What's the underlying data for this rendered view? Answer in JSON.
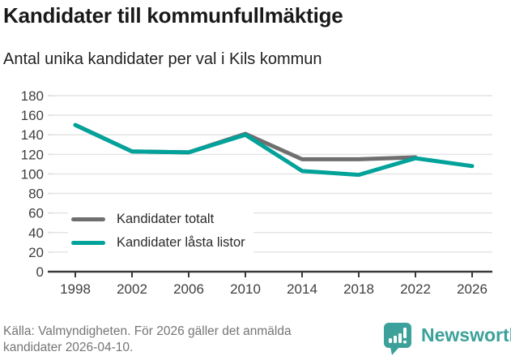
{
  "header": {
    "title": "Kandidater till kommunfullmäktige",
    "subtitle": "Antal unika kandidater per val i Kils kommun"
  },
  "chart_data": {
    "type": "line",
    "title": "Kandidater till kommunfullmäktige",
    "subtitle": "Antal unika kandidater per val i Kils kommun",
    "x": [
      1998,
      2002,
      2006,
      2010,
      2014,
      2018,
      2022,
      2026
    ],
    "series": [
      {
        "name": "Kandidater totalt",
        "color": "#6f6f6f",
        "values": [
          150,
          123,
          122,
          141,
          115,
          115,
          117,
          null
        ]
      },
      {
        "name": "Kandidater låsta listor",
        "color": "#00a29a",
        "values": [
          150,
          123,
          122,
          140,
          103,
          99,
          116,
          108
        ]
      }
    ],
    "xlabel": "",
    "ylabel": "",
    "ylim": [
      0,
      180
    ],
    "ytick_step": 20,
    "grid": "horizontal",
    "legend_position": "inside-bottom-left"
  },
  "footer": {
    "source": "Källa: Valmyndigheten. För 2026 gäller det anmälda\nkandidater 2026-04-10.",
    "brand": "Newsworthy"
  },
  "colors": {
    "accent_teal": "#00a29a",
    "series_gray": "#6f6f6f",
    "brand_teal": "#3ba19a",
    "gridline": "#e4e4e4",
    "axis": "#3a3a3a",
    "tick_label": "#3f3f3f"
  }
}
